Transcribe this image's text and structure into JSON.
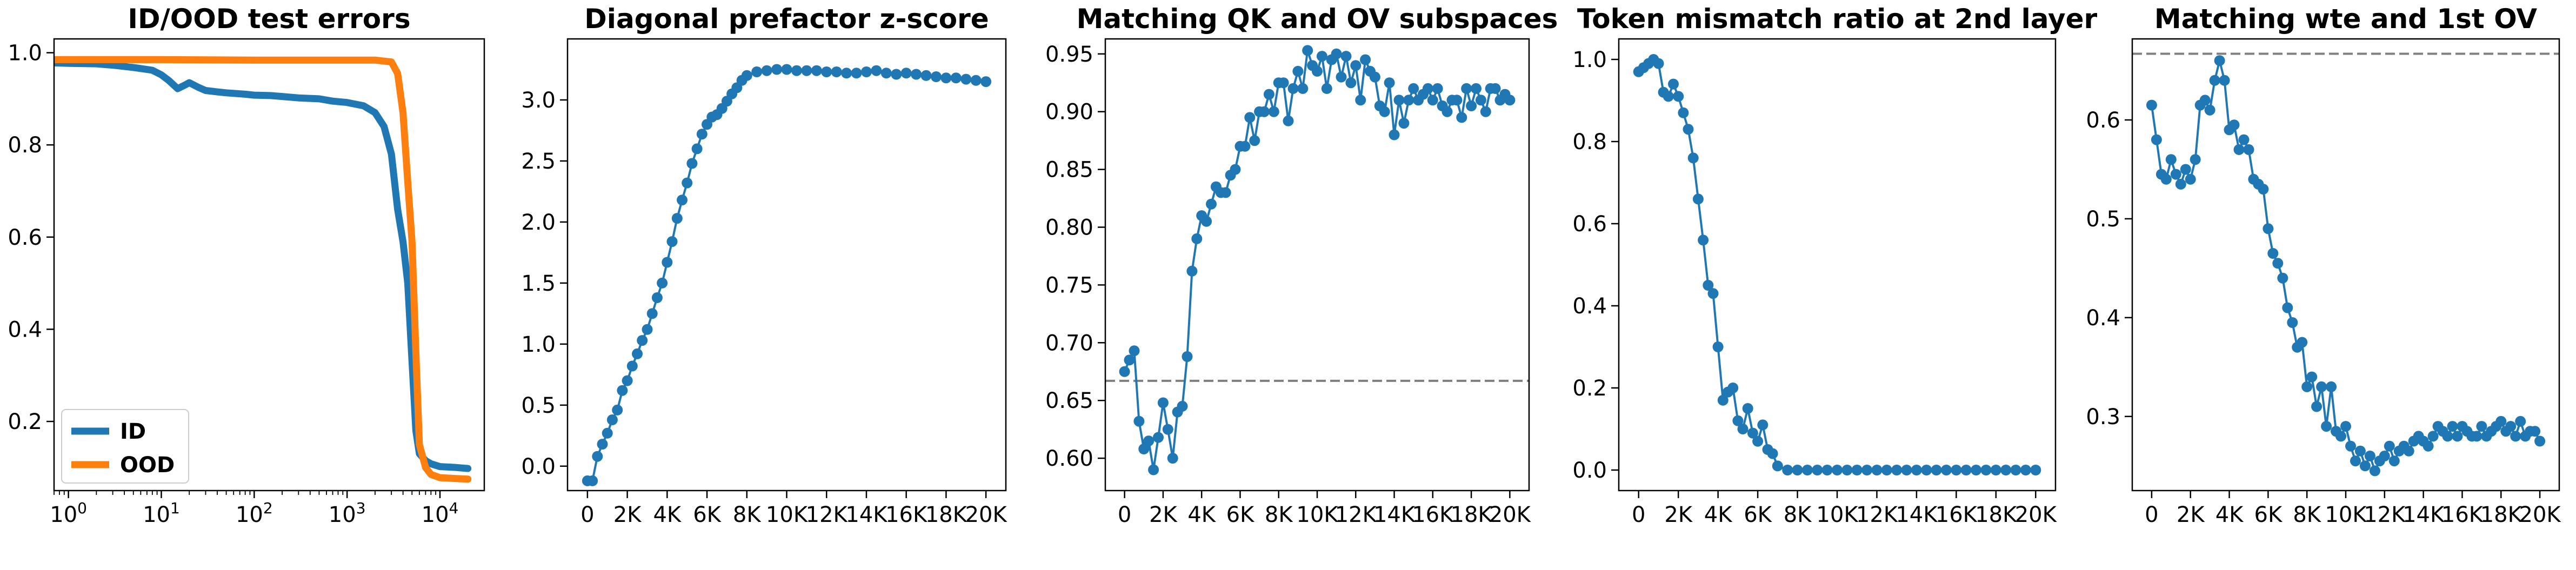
{
  "figure": {
    "colors": {
      "blue": "#1f77b4",
      "orange": "#ff7f0e",
      "reference": "#808080"
    }
  },
  "chart_data": [
    {
      "type": "line",
      "title": "ID/OOD test errors",
      "xscale": "log",
      "xlim": [
        0.7,
        30000
      ],
      "ylim": [
        0.05,
        1.03
      ],
      "xticks": [
        1,
        10,
        100,
        1000,
        10000
      ],
      "xtick_labels": [
        {
          "base": "10",
          "exp": "0"
        },
        {
          "base": "10",
          "exp": "1"
        },
        {
          "base": "10",
          "exp": "2"
        },
        {
          "base": "10",
          "exp": "3"
        },
        {
          "base": "10",
          "exp": "4"
        }
      ],
      "yticks": [
        0.2,
        0.4,
        0.6,
        0.8,
        1.0
      ],
      "ytick_labels": [
        "0.2",
        "0.4",
        "0.6",
        "0.8",
        "1.0"
      ],
      "legend": {
        "placement": "lower-left"
      },
      "series": [
        {
          "name": "ID",
          "color": "#1f77b4",
          "x": [
            0.7,
            1,
            2,
            3,
            5,
            8,
            10,
            12,
            15,
            18,
            20,
            25,
            30,
            40,
            50,
            80,
            100,
            150,
            200,
            300,
            500,
            700,
            1000,
            1500,
            2000,
            2500,
            3000,
            3500,
            4000,
            4500,
            5000,
            5500,
            6000,
            7000,
            8000,
            10000,
            15000,
            20000
          ],
          "y": [
            0.978,
            0.977,
            0.976,
            0.973,
            0.968,
            0.962,
            0.952,
            0.94,
            0.922,
            0.93,
            0.935,
            0.925,
            0.918,
            0.915,
            0.913,
            0.91,
            0.908,
            0.907,
            0.905,
            0.902,
            0.9,
            0.895,
            0.892,
            0.885,
            0.87,
            0.84,
            0.78,
            0.66,
            0.59,
            0.5,
            0.33,
            0.18,
            0.13,
            0.115,
            0.108,
            0.102,
            0.1,
            0.098
          ]
        },
        {
          "name": "OOD",
          "color": "#ff7f0e",
          "x": [
            0.7,
            1,
            10,
            100,
            1000,
            2000,
            3000,
            3500,
            4000,
            4500,
            5000,
            5500,
            6000,
            7000,
            8000,
            10000,
            15000,
            20000
          ],
          "y": [
            0.985,
            0.985,
            0.985,
            0.984,
            0.984,
            0.984,
            0.98,
            0.955,
            0.87,
            0.72,
            0.59,
            0.35,
            0.15,
            0.1,
            0.085,
            0.078,
            0.076,
            0.075
          ]
        }
      ]
    },
    {
      "type": "line",
      "title": "Diagonal prefactor z-score",
      "xlim": [
        -1000,
        21000
      ],
      "ylim": [
        -0.2,
        3.5
      ],
      "xticks": [
        0,
        2000,
        4000,
        6000,
        8000,
        10000,
        12000,
        14000,
        16000,
        18000,
        20000
      ],
      "xtick_labels": [
        "0",
        "2K",
        "4K",
        "6K",
        "8K",
        "10K",
        "12K",
        "14K",
        "16K",
        "18K",
        "20K"
      ],
      "yticks": [
        0,
        0.5,
        1.0,
        1.5,
        2.0,
        2.5,
        3.0
      ],
      "ytick_labels": [
        "0.0",
        "0.5",
        "1.0",
        "1.5",
        "2.0",
        "2.5",
        "3.0"
      ],
      "markers": true,
      "series": [
        {
          "color": "#1f77b4",
          "x": [
            0,
            250,
            500,
            750,
            1000,
            1250,
            1500,
            1750,
            2000,
            2250,
            2500,
            2750,
            3000,
            3250,
            3500,
            3750,
            4000,
            4250,
            4500,
            4750,
            5000,
            5250,
            5500,
            5750,
            6000,
            6250,
            6500,
            6750,
            7000,
            7250,
            7500,
            7750,
            8000,
            8500,
            9000,
            9500,
            10000,
            10500,
            11000,
            11500,
            12000,
            12500,
            13000,
            13500,
            14000,
            14500,
            15000,
            15500,
            16000,
            16500,
            17000,
            17500,
            18000,
            18500,
            19000,
            19500,
            20000
          ],
          "y": [
            -0.12,
            -0.12,
            0.08,
            0.18,
            0.27,
            0.38,
            0.46,
            0.62,
            0.7,
            0.82,
            0.92,
            1.03,
            1.12,
            1.25,
            1.38,
            1.5,
            1.67,
            1.84,
            2.03,
            2.18,
            2.32,
            2.48,
            2.6,
            2.72,
            2.8,
            2.86,
            2.88,
            2.93,
            2.99,
            3.05,
            3.1,
            3.16,
            3.2,
            3.23,
            3.24,
            3.25,
            3.25,
            3.24,
            3.24,
            3.24,
            3.23,
            3.23,
            3.22,
            3.22,
            3.23,
            3.24,
            3.22,
            3.21,
            3.22,
            3.21,
            3.2,
            3.19,
            3.18,
            3.18,
            3.17,
            3.16,
            3.15
          ]
        }
      ]
    },
    {
      "type": "line",
      "title": "Matching QK and OV subspaces",
      "xlim": [
        -1000,
        21000
      ],
      "ylim": [
        0.572,
        0.963
      ],
      "xticks": [
        0,
        2000,
        4000,
        6000,
        8000,
        10000,
        12000,
        14000,
        16000,
        18000,
        20000
      ],
      "xtick_labels": [
        "0",
        "2K",
        "4K",
        "6K",
        "8K",
        "10K",
        "12K",
        "14K",
        "16K",
        "18K",
        "20K"
      ],
      "yticks": [
        0.6,
        0.65,
        0.7,
        0.75,
        0.8,
        0.85,
        0.9,
        0.95
      ],
      "ytick_labels": [
        "0.60",
        "0.65",
        "0.70",
        "0.75",
        "0.80",
        "0.85",
        "0.90",
        "0.95"
      ],
      "reference_y": 0.667,
      "markers": true,
      "series": [
        {
          "color": "#1f77b4",
          "x": [
            0,
            250,
            500,
            750,
            1000,
            1250,
            1500,
            1750,
            2000,
            2250,
            2500,
            2750,
            3000,
            3250,
            3500,
            3750,
            4000,
            4250,
            4500,
            4750,
            5000,
            5250,
            5500,
            5750,
            6000,
            6250,
            6500,
            6750,
            7000,
            7250,
            7500,
            7750,
            8000,
            8250,
            8500,
            8750,
            9000,
            9250,
            9500,
            9750,
            10000,
            10250,
            10500,
            10750,
            11000,
            11250,
            11500,
            11750,
            12000,
            12250,
            12500,
            12750,
            13000,
            13250,
            13500,
            13750,
            14000,
            14250,
            14500,
            14750,
            15000,
            15250,
            15500,
            15750,
            16000,
            16250,
            16500,
            16750,
            17000,
            17250,
            17500,
            17750,
            18000,
            18250,
            18500,
            18750,
            19000,
            19250,
            19500,
            19750,
            20000
          ],
          "y": [
            0.675,
            0.685,
            0.693,
            0.632,
            0.608,
            0.615,
            0.59,
            0.618,
            0.648,
            0.625,
            0.6,
            0.64,
            0.645,
            0.688,
            0.762,
            0.79,
            0.81,
            0.805,
            0.82,
            0.835,
            0.83,
            0.83,
            0.845,
            0.85,
            0.87,
            0.87,
            0.895,
            0.875,
            0.9,
            0.9,
            0.915,
            0.9,
            0.925,
            0.925,
            0.892,
            0.92,
            0.935,
            0.92,
            0.953,
            0.94,
            0.935,
            0.948,
            0.92,
            0.945,
            0.95,
            0.93,
            0.948,
            0.925,
            0.94,
            0.91,
            0.945,
            0.935,
            0.93,
            0.905,
            0.9,
            0.925,
            0.88,
            0.91,
            0.89,
            0.91,
            0.92,
            0.91,
            0.915,
            0.92,
            0.91,
            0.92,
            0.905,
            0.9,
            0.91,
            0.91,
            0.895,
            0.92,
            0.905,
            0.92,
            0.91,
            0.9,
            0.92,
            0.92,
            0.91,
            0.915,
            0.91
          ]
        }
      ]
    },
    {
      "type": "line",
      "title": "Token mismatch ratio at 2nd layer",
      "xlim": [
        -1000,
        21000
      ],
      "ylim": [
        -0.05,
        1.05
      ],
      "xticks": [
        0,
        2000,
        4000,
        6000,
        8000,
        10000,
        12000,
        14000,
        16000,
        18000,
        20000
      ],
      "xtick_labels": [
        "0",
        "2K",
        "4K",
        "6K",
        "8K",
        "10K",
        "12K",
        "14K",
        "16K",
        "18K",
        "20K"
      ],
      "yticks": [
        0,
        0.2,
        0.4,
        0.6,
        0.8,
        1.0
      ],
      "ytick_labels": [
        "0.0",
        "0.2",
        "0.4",
        "0.6",
        "0.8",
        "1.0"
      ],
      "markers": true,
      "series": [
        {
          "color": "#1f77b4",
          "x": [
            0,
            250,
            500,
            750,
            1000,
            1250,
            1500,
            1750,
            2000,
            2250,
            2500,
            2750,
            3000,
            3250,
            3500,
            3750,
            4000,
            4250,
            4500,
            4750,
            5000,
            5250,
            5500,
            5750,
            6000,
            6250,
            6500,
            6750,
            7000,
            7500,
            8000,
            8500,
            9000,
            9500,
            10000,
            10500,
            11000,
            11500,
            12000,
            12500,
            13000,
            13500,
            14000,
            14500,
            15000,
            15500,
            16000,
            16500,
            17000,
            17500,
            18000,
            18500,
            19000,
            19500,
            20000
          ],
          "y": [
            0.97,
            0.98,
            0.99,
            1.0,
            0.99,
            0.92,
            0.91,
            0.94,
            0.91,
            0.87,
            0.83,
            0.76,
            0.66,
            0.56,
            0.45,
            0.43,
            0.3,
            0.17,
            0.19,
            0.2,
            0.12,
            0.1,
            0.15,
            0.09,
            0.07,
            0.11,
            0.05,
            0.04,
            0.01,
            0.0,
            0.0,
            0.0,
            0.0,
            0.0,
            0.0,
            0.0,
            0.0,
            0.0,
            0.0,
            0.0,
            0.0,
            0.0,
            0.0,
            0.0,
            0.0,
            0.0,
            0.0,
            0.0,
            0.0,
            0.0,
            0.0,
            0.0,
            0.0,
            0.0,
            0.0
          ]
        }
      ]
    },
    {
      "type": "line",
      "title": "Matching wte and 1st OV",
      "xlim": [
        -1000,
        21000
      ],
      "ylim": [
        0.225,
        0.682
      ],
      "xticks": [
        0,
        2000,
        4000,
        6000,
        8000,
        10000,
        12000,
        14000,
        16000,
        18000,
        20000
      ],
      "xtick_labels": [
        "0",
        "2K",
        "4K",
        "6K",
        "8K",
        "10K",
        "12K",
        "14K",
        "16K",
        "18K",
        "20K"
      ],
      "yticks": [
        0.3,
        0.4,
        0.5,
        0.6
      ],
      "ytick_labels": [
        "0.3",
        "0.4",
        "0.5",
        "0.6"
      ],
      "reference_y": 0.667,
      "markers": true,
      "series": [
        {
          "color": "#1f77b4",
          "x": [
            0,
            250,
            500,
            750,
            1000,
            1250,
            1500,
            1750,
            2000,
            2250,
            2500,
            2750,
            3000,
            3250,
            3500,
            3750,
            4000,
            4250,
            4500,
            4750,
            5000,
            5250,
            5500,
            5750,
            6000,
            6250,
            6500,
            6750,
            7000,
            7250,
            7500,
            7750,
            8000,
            8250,
            8500,
            8750,
            9000,
            9250,
            9500,
            9750,
            10000,
            10250,
            10500,
            10750,
            11000,
            11250,
            11500,
            11750,
            12000,
            12250,
            12500,
            12750,
            13000,
            13250,
            13500,
            13750,
            14000,
            14250,
            14500,
            14750,
            15000,
            15250,
            15500,
            15750,
            16000,
            16250,
            16500,
            16750,
            17000,
            17250,
            17500,
            17750,
            18000,
            18250,
            18500,
            18750,
            19000,
            19250,
            19500,
            19750,
            20000
          ],
          "y": [
            0.615,
            0.58,
            0.545,
            0.54,
            0.56,
            0.545,
            0.535,
            0.55,
            0.54,
            0.56,
            0.615,
            0.62,
            0.61,
            0.64,
            0.66,
            0.64,
            0.59,
            0.595,
            0.57,
            0.58,
            0.57,
            0.54,
            0.535,
            0.53,
            0.49,
            0.465,
            0.455,
            0.44,
            0.41,
            0.395,
            0.37,
            0.375,
            0.33,
            0.34,
            0.31,
            0.33,
            0.29,
            0.33,
            0.285,
            0.28,
            0.29,
            0.27,
            0.255,
            0.265,
            0.25,
            0.26,
            0.245,
            0.255,
            0.26,
            0.27,
            0.255,
            0.265,
            0.27,
            0.265,
            0.275,
            0.28,
            0.275,
            0.27,
            0.28,
            0.29,
            0.285,
            0.28,
            0.29,
            0.28,
            0.29,
            0.285,
            0.28,
            0.28,
            0.29,
            0.28,
            0.285,
            0.29,
            0.295,
            0.285,
            0.29,
            0.28,
            0.295,
            0.28,
            0.285,
            0.285,
            0.275
          ]
        }
      ]
    }
  ]
}
